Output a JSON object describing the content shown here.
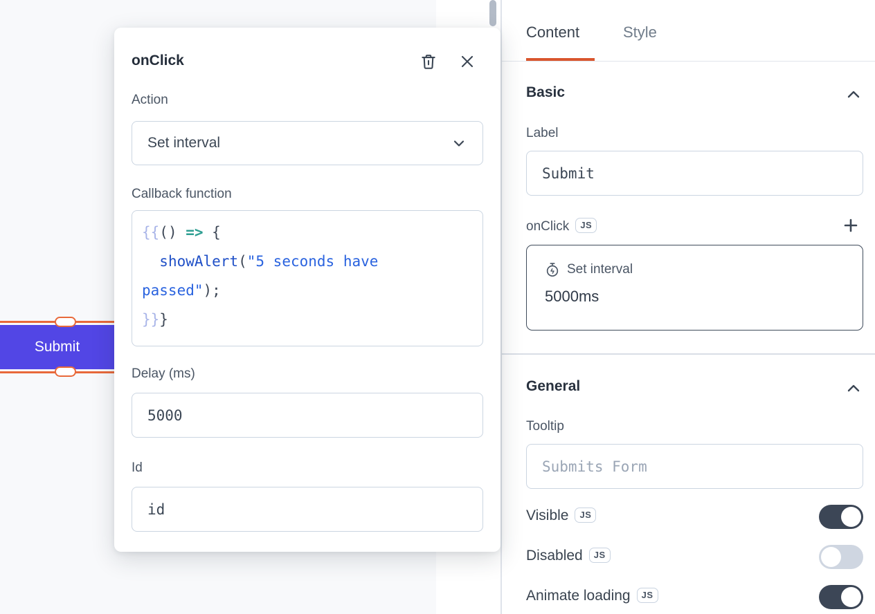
{
  "canvas": {
    "widget_button_label": "Submit"
  },
  "modal": {
    "title": "onClick",
    "action_label": "Action",
    "action_value": "Set interval",
    "callback_label": "Callback function",
    "code": {
      "lines": [
        [
          {
            "t": "{{",
            "c": "brace"
          },
          {
            "t": "() ",
            "c": "plain"
          },
          {
            "t": "=>",
            "c": "arrow"
          },
          {
            "t": " {",
            "c": "plain"
          }
        ],
        [
          {
            "t": "  ",
            "c": "plain"
          },
          {
            "t": "showAlert",
            "c": "func"
          },
          {
            "t": "(",
            "c": "plain"
          },
          {
            "t": "\"5 seconds have",
            "c": "str"
          }
        ],
        [
          {
            "t": "passed\"",
            "c": "str"
          },
          {
            "t": ");",
            "c": "plain"
          }
        ],
        [
          {
            "t": "}}",
            "c": "brace"
          },
          {
            "t": "}",
            "c": "plain"
          }
        ]
      ]
    },
    "delay_label": "Delay (ms)",
    "delay_value": "5000",
    "id_label": "Id",
    "id_value": "id"
  },
  "panel": {
    "tabs": {
      "content": "Content",
      "style": "Style"
    },
    "basic": {
      "heading": "Basic",
      "label_field_label": "Label",
      "label_field_value": "Submit",
      "onclick_label": "onClick",
      "onclick_js_badge": "JS",
      "action_card_title": "Set interval",
      "action_card_subtitle": "5000ms"
    },
    "general": {
      "heading": "General",
      "tooltip_label": "Tooltip",
      "tooltip_placeholder": "Submits Form",
      "toggles": [
        {
          "label": "Visible",
          "js_badge": "JS",
          "on": true
        },
        {
          "label": "Disabled",
          "js_badge": "JS",
          "on": false
        },
        {
          "label": "Animate loading",
          "js_badge": "JS",
          "on": true
        }
      ]
    }
  },
  "colors": {
    "accent_orange": "#D9562E",
    "selection_orange": "#E8693A",
    "widget_indigo": "#5246E5",
    "toggle_on": "#3C4656",
    "canvas_bg": "#F8F9FB"
  }
}
